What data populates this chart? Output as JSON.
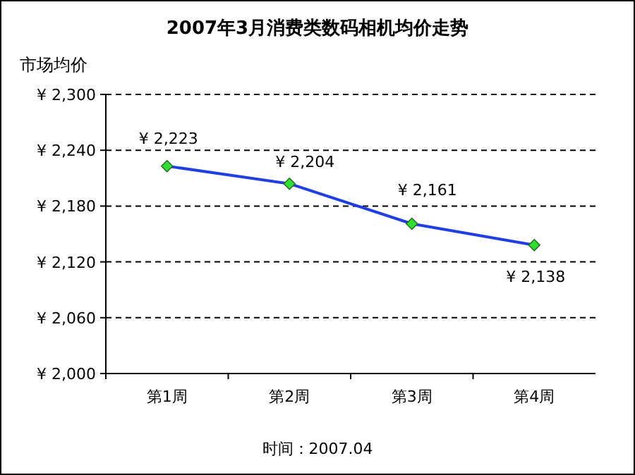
{
  "chart_data": {
    "type": "line",
    "title": "2007年3月消费类数码相机均价走势",
    "ylabel": "市场均价",
    "categories": [
      "第1周",
      "第2周",
      "第3周",
      "第4周"
    ],
    "series": [
      {
        "color": "#1f3fe0",
        "values": [
          2223,
          2204,
          2161,
          2138
        ],
        "value_labels": [
          "¥ 2,223",
          "¥ 2,204",
          "¥ 2,161",
          "¥ 2,138"
        ]
      }
    ],
    "ylim": [
      2000,
      2300
    ],
    "yticks": [
      {
        "value": 2000,
        "label": "¥ 2,000"
      },
      {
        "value": 2060,
        "label": "¥ 2,060"
      },
      {
        "value": 2120,
        "label": "¥ 2,120"
      },
      {
        "value": 2180,
        "label": "¥ 2,180"
      },
      {
        "value": 2240,
        "label": "¥ 2,240"
      },
      {
        "value": 2300,
        "label": "¥ 2,300"
      }
    ],
    "grid": "y",
    "marker": "diamond",
    "line_style": "solid",
    "annotations": [
      "时间：2007.04"
    ]
  }
}
